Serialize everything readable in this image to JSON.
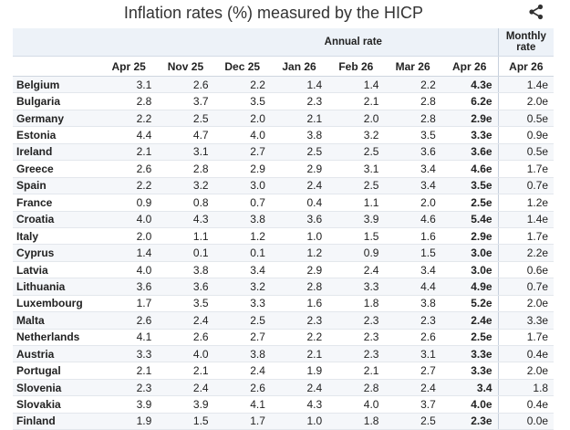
{
  "title": "Inflation rates (%) measured by the HICP",
  "share_icon": "share-icon",
  "headers": {
    "annual_group": "Annual rate",
    "monthly_group": "Monthly rate",
    "months": [
      "Apr 25",
      "Nov 25",
      "Dec 25",
      "Jan 26",
      "Feb 26",
      "Mar 26",
      "Apr 26",
      "Apr 26"
    ]
  },
  "rows": [
    {
      "country": "Belgium",
      "values": [
        "3.1",
        "2.6",
        "2.2",
        "1.4",
        "1.4",
        "2.2",
        "4.3e",
        "1.4e"
      ]
    },
    {
      "country": "Bulgaria",
      "values": [
        "2.8",
        "3.7",
        "3.5",
        "2.3",
        "2.1",
        "2.8",
        "6.2e",
        "2.0e"
      ]
    },
    {
      "country": "Germany",
      "values": [
        "2.2",
        "2.5",
        "2.0",
        "2.1",
        "2.0",
        "2.8",
        "2.9e",
        "0.5e"
      ]
    },
    {
      "country": "Estonia",
      "values": [
        "4.4",
        "4.7",
        "4.0",
        "3.8",
        "3.2",
        "3.5",
        "3.3e",
        "0.9e"
      ]
    },
    {
      "country": "Ireland",
      "values": [
        "2.1",
        "3.1",
        "2.7",
        "2.5",
        "2.5",
        "3.6",
        "3.6e",
        "0.5e"
      ]
    },
    {
      "country": "Greece",
      "values": [
        "2.6",
        "2.8",
        "2.9",
        "2.9",
        "3.1",
        "3.4",
        "4.6e",
        "1.7e"
      ]
    },
    {
      "country": "Spain",
      "values": [
        "2.2",
        "3.2",
        "3.0",
        "2.4",
        "2.5",
        "3.4",
        "3.5e",
        "0.7e"
      ]
    },
    {
      "country": "France",
      "values": [
        "0.9",
        "0.8",
        "0.7",
        "0.4",
        "1.1",
        "2.0",
        "2.5e",
        "1.2e"
      ]
    },
    {
      "country": "Croatia",
      "values": [
        "4.0",
        "4.3",
        "3.8",
        "3.6",
        "3.9",
        "4.6",
        "5.4e",
        "1.4e"
      ]
    },
    {
      "country": "Italy",
      "values": [
        "2.0",
        "1.1",
        "1.2",
        "1.0",
        "1.5",
        "1.6",
        "2.9e",
        "1.7e"
      ]
    },
    {
      "country": "Cyprus",
      "values": [
        "1.4",
        "0.1",
        "0.1",
        "1.2",
        "0.9",
        "1.5",
        "3.0e",
        "2.2e"
      ]
    },
    {
      "country": "Latvia",
      "values": [
        "4.0",
        "3.8",
        "3.4",
        "2.9",
        "2.4",
        "3.4",
        "3.0e",
        "0.6e"
      ]
    },
    {
      "country": "Lithuania",
      "values": [
        "3.6",
        "3.6",
        "3.2",
        "2.8",
        "3.3",
        "4.4",
        "4.9e",
        "0.7e"
      ]
    },
    {
      "country": "Luxembourg",
      "values": [
        "1.7",
        "3.5",
        "3.3",
        "1.6",
        "1.8",
        "3.8",
        "5.2e",
        "2.0e"
      ]
    },
    {
      "country": "Malta",
      "values": [
        "2.6",
        "2.4",
        "2.5",
        "2.3",
        "2.3",
        "2.3",
        "2.4e",
        "3.3e"
      ]
    },
    {
      "country": "Netherlands",
      "values": [
        "4.1",
        "2.6",
        "2.7",
        "2.2",
        "2.3",
        "2.6",
        "2.5e",
        "1.7e"
      ]
    },
    {
      "country": "Austria",
      "values": [
        "3.3",
        "4.0",
        "3.8",
        "2.1",
        "2.3",
        "3.1",
        "3.3e",
        "0.4e"
      ]
    },
    {
      "country": "Portugal",
      "values": [
        "2.1",
        "2.1",
        "2.4",
        "1.9",
        "2.1",
        "2.7",
        "3.3e",
        "2.0e"
      ]
    },
    {
      "country": "Slovenia",
      "values": [
        "2.3",
        "2.4",
        "2.6",
        "2.4",
        "2.8",
        "2.4",
        "3.4",
        "1.8"
      ]
    },
    {
      "country": "Slovakia",
      "values": [
        "3.9",
        "3.9",
        "4.1",
        "4.3",
        "4.0",
        "3.7",
        "4.0e",
        "0.4e"
      ]
    },
    {
      "country": "Finland",
      "values": [
        "1.9",
        "1.5",
        "1.7",
        "1.0",
        "1.8",
        "2.5",
        "2.3e",
        "0.0e"
      ]
    }
  ]
}
